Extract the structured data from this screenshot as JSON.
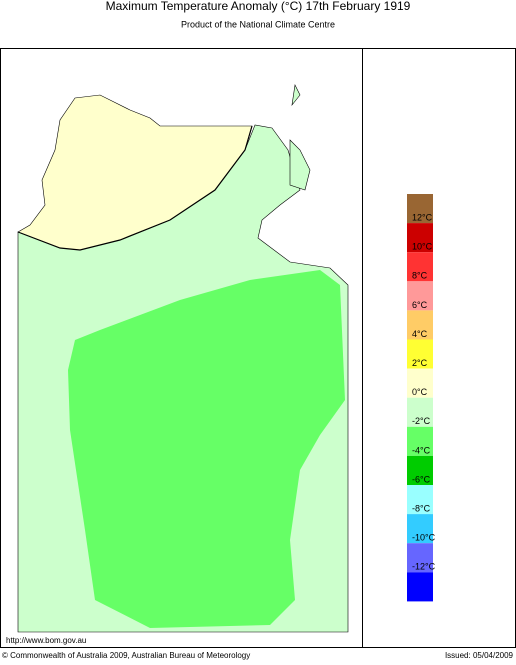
{
  "header": {
    "title": "Maximum Temperature Anomaly (°C)  17th February 1919",
    "subtitle": "Product of the National Climate Centre"
  },
  "legend": {
    "colors": [
      "#996633",
      "#cc0000",
      "#ff3333",
      "#ff9999",
      "#ffcc66",
      "#ffff33",
      "#ffffcc",
      "#ccffcc",
      "#66ff66",
      "#00cc00",
      "#99ffff",
      "#33ccff",
      "#6666ff",
      "#0000ff"
    ],
    "labels": [
      "12°C",
      "10°C",
      "8°C",
      "6°C",
      "4°C",
      "2°C",
      "0°C",
      "-2°C",
      "-4°C",
      "-6°C",
      "-8°C",
      "-10°C",
      "-12°C"
    ]
  },
  "footer": {
    "url": "http://www.bom.gov.au",
    "copyright": "© Commonwealth of Australia 2009, Australian Bureau of Meteorology",
    "issued": "Issued: 05/04/2009"
  }
}
